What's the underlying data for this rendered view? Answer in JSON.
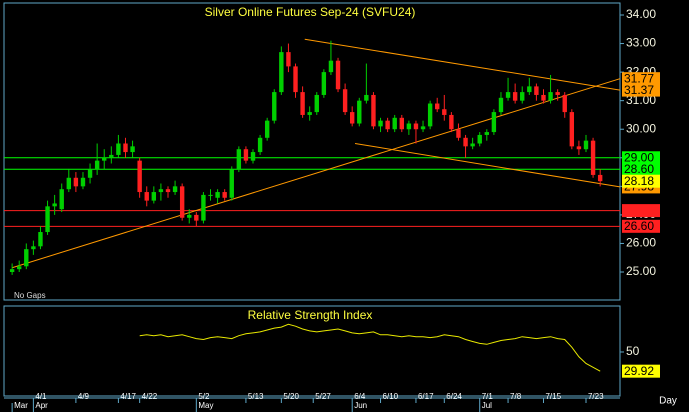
{
  "chart_data": [
    {
      "type": "candlestick",
      "title": "Silver Online Futures Sep-24 (SVFU24)",
      "note": "No Gaps",
      "x_unit": "Day",
      "up_color": "#00d000",
      "down_color": "#ff2020",
      "xlim": [
        -0.3,
        85.8
      ],
      "ylim": [
        24.02,
        34.35
      ],
      "yticks": [
        {
          "value": 25,
          "label": "25.00"
        },
        {
          "value": 26,
          "label": "26.00"
        },
        {
          "value": 27,
          "label": "27.00"
        },
        {
          "value": 28,
          "label": "28.00"
        },
        {
          "value": 29,
          "label": "29.00"
        },
        {
          "value": 30,
          "label": "30.00"
        },
        {
          "value": 31,
          "label": "31.00"
        },
        {
          "value": 32,
          "label": "32.00"
        },
        {
          "value": 33,
          "label": "33.00"
        },
        {
          "value": 34,
          "label": "34.00"
        }
      ],
      "xticks": [
        {
          "value": 3,
          "label": "4/1"
        },
        {
          "value": 9,
          "label": "4/9"
        },
        {
          "value": 15,
          "label": "4/17"
        },
        {
          "value": 18,
          "label": "4/22"
        },
        {
          "value": 26,
          "label": "5/2"
        },
        {
          "value": 33,
          "label": "5/13"
        },
        {
          "value": 38,
          "label": "5/20"
        },
        {
          "value": 42.5,
          "label": "5/27"
        },
        {
          "value": 48,
          "label": "6/4"
        },
        {
          "value": 52,
          "label": "6/10"
        },
        {
          "value": 57,
          "label": "6/17"
        },
        {
          "value": 61,
          "label": "6/24"
        },
        {
          "value": 66,
          "label": "7/1"
        },
        {
          "value": 70,
          "label": "7/8"
        },
        {
          "value": 75,
          "label": "7/15"
        },
        {
          "value": 81,
          "label": "7/23"
        }
      ],
      "months": [
        {
          "value": 0,
          "label": "Mar"
        },
        {
          "value": 3,
          "label": "Apr"
        },
        {
          "value": 26,
          "label": "May"
        },
        {
          "value": 48,
          "label": "Jun"
        },
        {
          "value": 66,
          "label": "Jul"
        }
      ],
      "candles": [
        [
          25.0,
          25.3,
          24.9,
          25.1
        ],
        [
          25.1,
          25.4,
          25.0,
          25.2
        ],
        [
          25.2,
          26.0,
          25.1,
          25.8
        ],
        [
          25.8,
          26.1,
          25.6,
          25.9
        ],
        [
          25.9,
          26.6,
          25.8,
          26.4
        ],
        [
          26.4,
          27.5,
          26.3,
          27.3
        ],
        [
          27.3,
          27.7,
          27.0,
          27.4
        ],
        [
          27.2,
          28.1,
          27.1,
          27.9
        ],
        [
          27.9,
          28.6,
          27.8,
          28.3
        ],
        [
          28.3,
          28.5,
          27.8,
          28.0
        ],
        [
          28.0,
          28.5,
          27.9,
          28.3
        ],
        [
          28.3,
          28.8,
          28.1,
          28.6
        ],
        [
          28.6,
          29.5,
          28.4,
          28.9
        ],
        [
          28.9,
          29.3,
          28.6,
          29.0
        ],
        [
          29.0,
          29.4,
          28.8,
          29.1
        ],
        [
          29.1,
          29.8,
          29.0,
          29.5
        ],
        [
          29.5,
          29.7,
          29.0,
          29.2
        ],
        [
          29.2,
          29.6,
          29.0,
          29.4
        ],
        [
          28.9,
          29.0,
          27.6,
          27.8
        ],
        [
          27.8,
          28.0,
          27.3,
          27.5
        ],
        [
          27.5,
          28.0,
          27.4,
          27.8
        ],
        [
          27.8,
          28.1,
          27.5,
          27.9
        ],
        [
          27.9,
          28.0,
          27.6,
          27.8
        ],
        [
          27.8,
          28.2,
          27.7,
          28.0
        ],
        [
          28.0,
          28.1,
          26.8,
          26.9
        ],
        [
          26.9,
          27.2,
          26.7,
          27.0
        ],
        [
          27.0,
          27.1,
          26.6,
          26.8
        ],
        [
          26.8,
          27.8,
          26.7,
          27.7
        ],
        [
          27.7,
          27.9,
          27.5,
          27.7
        ],
        [
          27.6,
          27.9,
          27.4,
          27.8
        ],
        [
          27.8,
          27.9,
          27.5,
          27.6
        ],
        [
          27.6,
          28.7,
          27.5,
          28.6
        ],
        [
          28.6,
          29.4,
          28.5,
          29.3
        ],
        [
          29.3,
          29.4,
          28.8,
          28.9
        ],
        [
          28.9,
          29.3,
          28.8,
          29.2
        ],
        [
          29.2,
          29.8,
          29.1,
          29.7
        ],
        [
          29.7,
          30.4,
          29.6,
          30.3
        ],
        [
          30.3,
          31.4,
          30.2,
          31.3
        ],
        [
          31.3,
          32.9,
          31.2,
          32.7
        ],
        [
          32.7,
          33.0,
          32.0,
          32.2
        ],
        [
          32.2,
          32.3,
          31.1,
          31.3
        ],
        [
          31.3,
          31.5,
          30.4,
          30.5
        ],
        [
          30.5,
          30.8,
          30.3,
          30.6
        ],
        [
          30.6,
          31.3,
          30.5,
          31.2
        ],
        [
          31.2,
          32.1,
          31.1,
          32.0
        ],
        [
          32.0,
          33.1,
          31.9,
          32.4
        ],
        [
          32.4,
          32.5,
          31.3,
          31.4
        ],
        [
          31.4,
          31.6,
          30.5,
          30.6
        ],
        [
          30.6,
          30.8,
          30.1,
          30.2
        ],
        [
          30.2,
          31.1,
          30.1,
          31.0
        ],
        [
          31.0,
          32.3,
          30.9,
          31.2
        ],
        [
          31.2,
          31.3,
          30.0,
          30.1
        ],
        [
          30.1,
          30.4,
          29.9,
          30.3
        ],
        [
          30.3,
          30.4,
          29.9,
          30.0
        ],
        [
          30.0,
          30.5,
          29.9,
          30.4
        ],
        [
          30.4,
          30.5,
          29.9,
          30.0
        ],
        [
          30.0,
          30.3,
          29.8,
          30.2
        ],
        [
          30.2,
          30.3,
          29.5,
          30.0
        ],
        [
          30.0,
          30.3,
          29.9,
          30.1
        ],
        [
          30.1,
          31.0,
          30.0,
          30.9
        ],
        [
          30.9,
          31.1,
          30.6,
          30.7
        ],
        [
          30.7,
          31.2,
          30.3,
          30.5
        ],
        [
          30.5,
          30.6,
          29.9,
          30.0
        ],
        [
          30.0,
          30.2,
          29.6,
          29.7
        ],
        [
          29.7,
          29.8,
          29.0,
          29.4
        ],
        [
          29.4,
          29.7,
          29.3,
          29.5
        ],
        [
          29.5,
          29.9,
          29.4,
          29.8
        ],
        [
          29.8,
          30.0,
          29.6,
          29.9
        ],
        [
          29.9,
          30.7,
          29.8,
          30.6
        ],
        [
          30.6,
          31.3,
          30.5,
          31.1
        ],
        [
          31.1,
          31.8,
          31.0,
          31.3
        ],
        [
          31.3,
          31.6,
          30.9,
          31.0
        ],
        [
          31.0,
          31.5,
          30.9,
          31.3
        ],
        [
          31.3,
          31.8,
          31.2,
          31.5
        ],
        [
          31.5,
          31.6,
          31.0,
          31.2
        ],
        [
          31.2,
          31.4,
          30.9,
          31.0
        ],
        [
          31.0,
          31.9,
          30.9,
          31.3
        ],
        [
          31.3,
          31.4,
          31.0,
          31.2
        ],
        [
          31.2,
          31.3,
          30.4,
          30.6
        ],
        [
          30.6,
          30.7,
          29.3,
          29.4
        ],
        [
          29.4,
          29.6,
          29.1,
          29.3
        ],
        [
          29.3,
          29.8,
          29.2,
          29.6
        ],
        [
          29.6,
          29.7,
          28.3,
          28.4
        ],
        [
          28.4,
          28.6,
          28.0,
          28.18
        ]
      ],
      "last_color": "#ffff00",
      "levels": [
        {
          "value": 29,
          "label": "29.00",
          "color": "#00ff00"
        },
        {
          "value": 28.6,
          "label": "28.60",
          "color": "#00ff00"
        },
        {
          "value": 27.15,
          "color": "#ff2020"
        },
        {
          "value": 26.6,
          "label": "26.60",
          "color": "#ff2020"
        }
      ],
      "trendlines": [
        {
          "x0": 0,
          "y0": 25.15,
          "x1": 85.8,
          "y1": 31.77,
          "color": "#ff9900"
        },
        {
          "x0": 41.3,
          "y0": 33.15,
          "x1": 85.8,
          "y1": 31.37,
          "color": "#ff9900"
        },
        {
          "x0": 48.4,
          "y0": 29.5,
          "x1": 85.8,
          "y1": 27.98,
          "color": "#ff9900"
        }
      ]
    },
    {
      "type": "line",
      "title": "Relative Strength Index",
      "color": "#e8e800",
      "label_color": "#ffff00",
      "xlim": [
        -0.3,
        85.8
      ],
      "ylim": [
        5,
        96
      ],
      "yticks": [
        50
      ],
      "values": [
        null,
        null,
        null,
        null,
        null,
        null,
        null,
        null,
        null,
        null,
        null,
        null,
        null,
        null,
        null,
        null,
        null,
        null,
        67,
        68,
        67,
        68,
        66,
        67,
        68,
        66,
        64,
        63,
        65,
        66,
        65,
        64,
        67,
        69,
        70,
        71,
        73,
        75,
        76,
        79,
        77,
        74,
        72,
        71,
        72,
        73,
        74,
        72,
        70,
        69,
        70,
        71,
        68,
        68,
        67,
        66,
        67,
        66,
        66,
        65,
        66,
        68,
        67,
        66,
        63,
        61,
        59,
        58,
        60,
        62,
        63,
        64,
        66,
        65,
        64,
        65,
        66,
        64,
        63,
        55,
        45,
        38,
        34,
        29.92
      ]
    }
  ]
}
